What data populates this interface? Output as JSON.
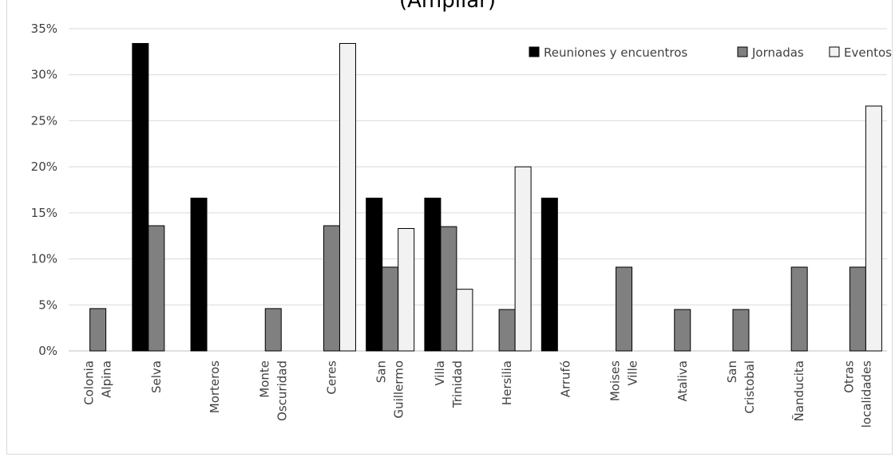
{
  "chart_data": {
    "type": "bar",
    "title": "(Ampliar)",
    "categories": [
      [
        "Colonia",
        "Alpina"
      ],
      [
        "Selva"
      ],
      [
        "Morteros"
      ],
      [
        "Monte",
        "Oscuridad"
      ],
      [
        "Ceres"
      ],
      [
        "San",
        "Guillermo"
      ],
      [
        "Villa",
        "Trinidad"
      ],
      [
        "Hersilia"
      ],
      [
        "Arrufó"
      ],
      [
        "Moises",
        "Ville"
      ],
      [
        "Ataliva"
      ],
      [
        "San",
        "Cristobal"
      ],
      [
        "Ñanducita"
      ],
      [
        "Otras",
        "localidades"
      ]
    ],
    "series": [
      {
        "name": "Reuniones y encuentros",
        "color": "#000000",
        "values": [
          0,
          33.4,
          16.6,
          0,
          0,
          16.6,
          16.6,
          0,
          16.6,
          0,
          0,
          0,
          0,
          0
        ]
      },
      {
        "name": "Jornadas",
        "color": "#808080",
        "values": [
          4.6,
          13.6,
          0,
          4.6,
          13.6,
          9.1,
          13.5,
          4.5,
          0,
          9.1,
          4.5,
          4.5,
          9.1,
          9.1
        ]
      },
      {
        "name": "Eventos",
        "color": "#f2f2f2",
        "values": [
          0,
          0,
          0,
          0,
          33.4,
          13.3,
          6.7,
          20.0,
          0,
          0,
          0,
          0,
          0,
          26.6
        ]
      }
    ],
    "ylim": [
      0,
      35
    ],
    "yticks": [
      0,
      5,
      10,
      15,
      20,
      25,
      30,
      35
    ],
    "ytick_format": "%",
    "grid": true,
    "legend_position": "top-right"
  }
}
